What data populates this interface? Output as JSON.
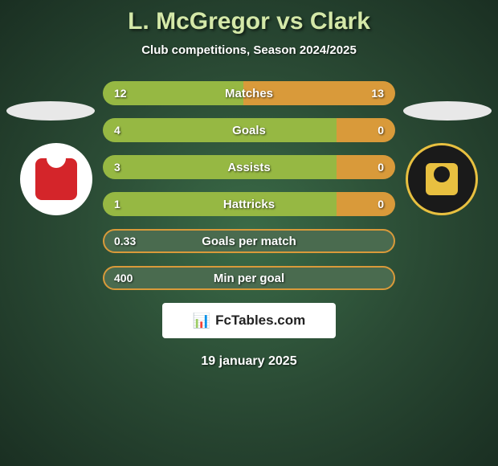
{
  "title": "L. McGregor vs Clark",
  "subtitle": "Club competitions, Season 2024/2025",
  "watermark": "FcTables.com",
  "date": "19 january 2025",
  "colors": {
    "left_fill": "#96b843",
    "right_fill": "#d99a3a",
    "neutral_bg": "#4a6b4f",
    "neutral_border": "#d99a3a"
  },
  "stats": [
    {
      "label": "Matches",
      "left_val": "12",
      "right_val": "13",
      "left_pct": 48,
      "right_pct": 52,
      "left_color": "#96b843",
      "right_color": "#d99a3a"
    },
    {
      "label": "Goals",
      "left_val": "4",
      "right_val": "0",
      "left_pct": 80,
      "right_pct": 20,
      "left_color": "#96b843",
      "right_color": "#d99a3a"
    },
    {
      "label": "Assists",
      "left_val": "3",
      "right_val": "0",
      "left_pct": 80,
      "right_pct": 20,
      "left_color": "#96b843",
      "right_color": "#d99a3a"
    },
    {
      "label": "Hattricks",
      "left_val": "1",
      "right_val": "0",
      "left_pct": 80,
      "right_pct": 20,
      "left_color": "#96b843",
      "right_color": "#d99a3a"
    },
    {
      "label": "Goals per match",
      "left_val": "0.33",
      "right_val": "",
      "neutral": true
    },
    {
      "label": "Min per goal",
      "left_val": "400",
      "right_val": "",
      "neutral": true
    }
  ]
}
